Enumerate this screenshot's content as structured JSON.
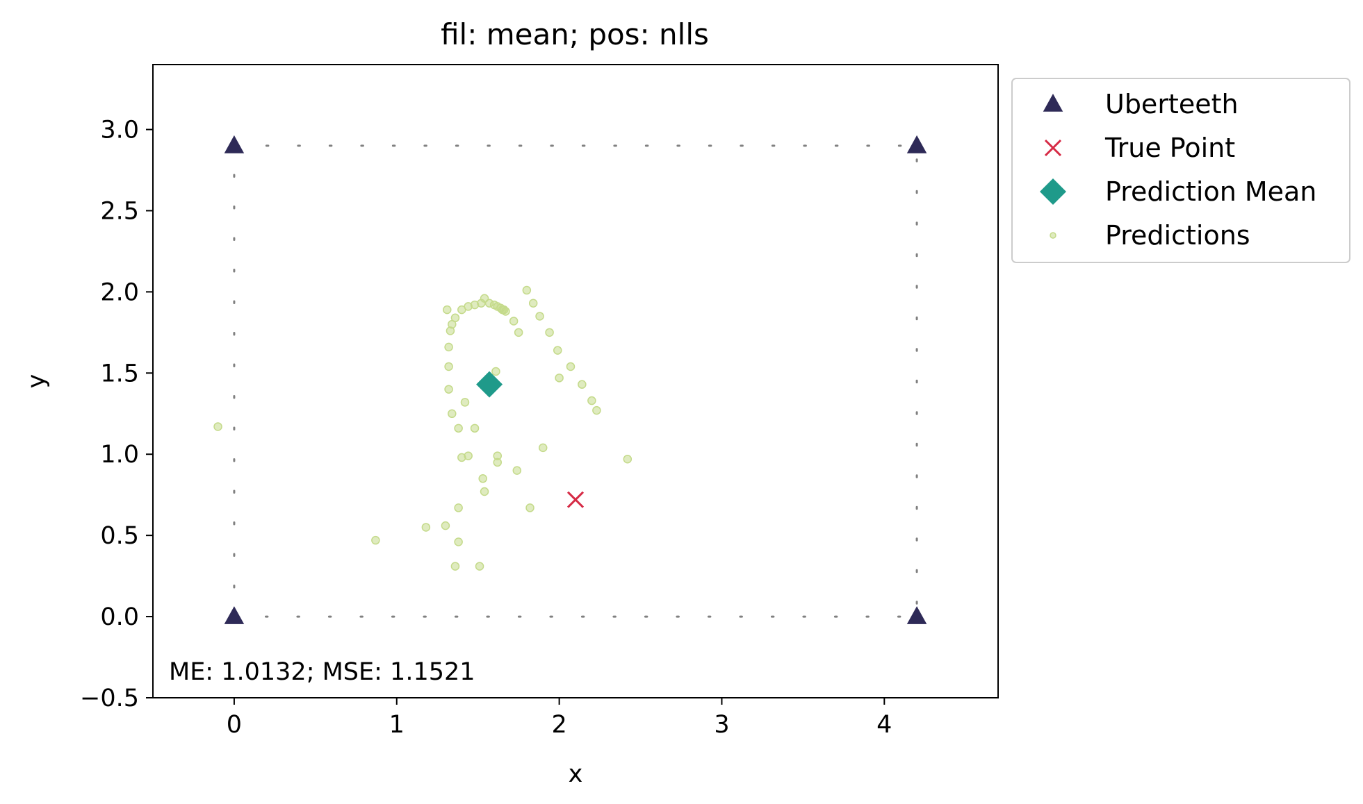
{
  "chart_data": {
    "type": "scatter",
    "title": "fil: mean; pos: nlls",
    "xlabel": "x",
    "ylabel": "y",
    "xlim": [
      -0.5,
      4.7
    ],
    "ylim": [
      -0.5,
      3.4
    ],
    "xticks": [
      0,
      1,
      2,
      3,
      4
    ],
    "xtick_labels": [
      "0",
      "1",
      "2",
      "3",
      "4"
    ],
    "yticks": [
      -0.5,
      0.0,
      0.5,
      1.0,
      1.5,
      2.0,
      2.5,
      3.0
    ],
    "ytick_labels": [
      "−0.5",
      "0.0",
      "0.5",
      "1.0",
      "1.5",
      "2.0",
      "2.5",
      "3.0"
    ],
    "grid": false,
    "legend_position": "outside-upper-right",
    "annotation": "ME: 1.0132;  MSE: 1.1521",
    "colors": {
      "uberteeth": "#2e2a57",
      "true_point": "#d62a45",
      "prediction_mean": "#1f9a8a",
      "predictions": "#c4da8a",
      "boundary": "#808080"
    },
    "boundary": [
      [
        0,
        0
      ],
      [
        4.2,
        0
      ],
      [
        4.2,
        2.9
      ],
      [
        0,
        2.9
      ],
      [
        0,
        0
      ]
    ],
    "series": [
      {
        "name": "Uberteeth",
        "marker": "triangle",
        "points": [
          [
            0,
            0
          ],
          [
            4.2,
            0
          ],
          [
            0,
            2.9
          ],
          [
            4.2,
            2.9
          ]
        ]
      },
      {
        "name": "True Point",
        "marker": "x",
        "points": [
          [
            2.1,
            0.72
          ]
        ]
      },
      {
        "name": "Prediction Mean",
        "marker": "diamond",
        "points": [
          [
            1.57,
            1.43
          ]
        ]
      },
      {
        "name": "Predictions",
        "marker": "dot",
        "points": [
          [
            -0.1,
            1.17
          ],
          [
            0.87,
            0.47
          ],
          [
            1.18,
            0.55
          ],
          [
            1.3,
            0.56
          ],
          [
            1.36,
            0.31
          ],
          [
            1.38,
            0.67
          ],
          [
            1.38,
            0.46
          ],
          [
            1.4,
            0.98
          ],
          [
            1.44,
            0.99
          ],
          [
            1.51,
            0.31
          ],
          [
            1.53,
            0.85
          ],
          [
            1.54,
            0.77
          ],
          [
            1.62,
            0.99
          ],
          [
            1.62,
            0.95
          ],
          [
            1.74,
            0.9
          ],
          [
            1.82,
            0.67
          ],
          [
            1.9,
            1.04
          ],
          [
            2.42,
            0.97
          ],
          [
            1.38,
            1.16
          ],
          [
            1.48,
            1.16
          ],
          [
            1.34,
            1.25
          ],
          [
            1.42,
            1.32
          ],
          [
            1.32,
            1.4
          ],
          [
            1.32,
            1.54
          ],
          [
            1.32,
            1.66
          ],
          [
            1.34,
            1.8
          ],
          [
            1.33,
            1.76
          ],
          [
            1.31,
            1.89
          ],
          [
            1.36,
            1.84
          ],
          [
            1.4,
            1.89
          ],
          [
            1.44,
            1.91
          ],
          [
            1.48,
            1.92
          ],
          [
            1.52,
            1.93
          ],
          [
            1.54,
            1.96
          ],
          [
            1.57,
            1.93
          ],
          [
            1.6,
            1.92
          ],
          [
            1.62,
            1.91
          ],
          [
            1.64,
            1.9
          ],
          [
            1.65,
            1.89
          ],
          [
            1.66,
            1.89
          ],
          [
            1.67,
            1.88
          ],
          [
            1.72,
            1.82
          ],
          [
            1.75,
            1.75
          ],
          [
            1.8,
            2.01
          ],
          [
            1.84,
            1.93
          ],
          [
            1.88,
            1.85
          ],
          [
            1.94,
            1.75
          ],
          [
            1.99,
            1.64
          ],
          [
            2.07,
            1.54
          ],
          [
            2.14,
            1.43
          ],
          [
            2.2,
            1.33
          ],
          [
            2.23,
            1.27
          ],
          [
            2.0,
            1.47
          ],
          [
            1.61,
            1.51
          ]
        ]
      }
    ]
  }
}
